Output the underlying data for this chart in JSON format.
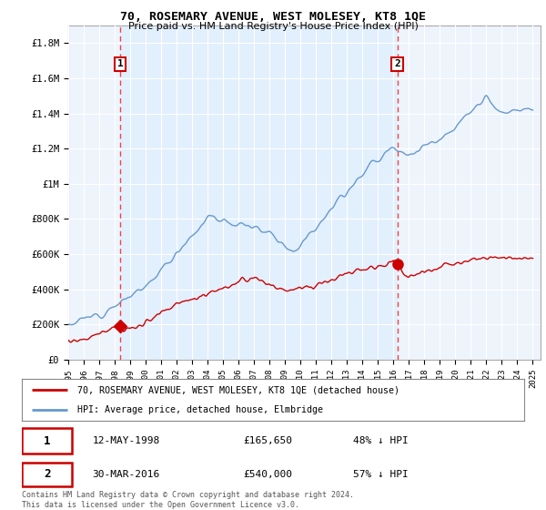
{
  "title": "70, ROSEMARY AVENUE, WEST MOLESEY, KT8 1QE",
  "subtitle": "Price paid vs. HM Land Registry's House Price Index (HPI)",
  "legend_line1": "70, ROSEMARY AVENUE, WEST MOLESEY, KT8 1QE (detached house)",
  "legend_line2": "HPI: Average price, detached house, Elmbridge",
  "sale1_date": "12-MAY-1998",
  "sale1_price": "£165,650",
  "sale1_hpi": "48% ↓ HPI",
  "sale1_year": 1998.37,
  "sale1_value": 165650,
  "sale2_date": "30-MAR-2016",
  "sale2_price": "£540,000",
  "sale2_hpi": "57% ↓ HPI",
  "sale2_year": 2016.25,
  "sale2_value": 540000,
  "ylabel_ticks": [
    "£0",
    "£200K",
    "£400K",
    "£600K",
    "£800K",
    "£1M",
    "£1.2M",
    "£1.4M",
    "£1.6M",
    "£1.8M"
  ],
  "ytick_values": [
    0,
    200000,
    400000,
    600000,
    800000,
    1000000,
    1200000,
    1400000,
    1600000,
    1800000
  ],
  "xlim": [
    1995,
    2025.5
  ],
  "ylim": [
    0,
    1900000
  ],
  "footnote": "Contains HM Land Registry data © Crown copyright and database right 2024.\nThis data is licensed under the Open Government Licence v3.0.",
  "red_color": "#cc0000",
  "blue_color": "#6699cc",
  "dashed_color": "#ee4444",
  "shade_color": "#ddeeff",
  "background_plot": "#eef4fb",
  "background_fig": "#ffffff",
  "grid_color": "#ffffff"
}
